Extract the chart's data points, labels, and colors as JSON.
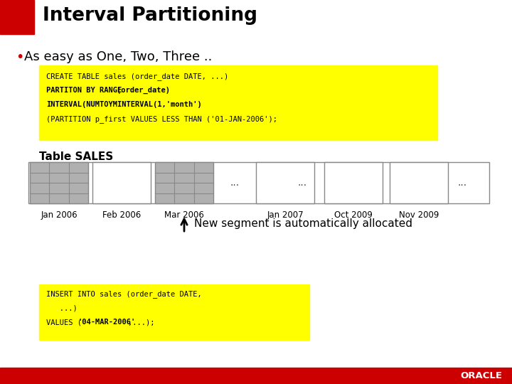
{
  "title": "Interval Partitioning",
  "bullet": "As easy as One, Two, Three ..",
  "code_line1": "CREATE TABLE sales (order_date DATE, ...)",
  "code_line2a": "PARTITON BY RANGE ",
  "code_line2b": "(order_date)",
  "code_line3": "INTERVAL(NUMTOYMINTERVAL(1,'month')",
  "code_line4": "(PARTITION p_first VALUES LESS THAN ('01-JAN-2006');",
  "table_label": "Table SALES",
  "partition_labels": [
    "Jan 2006",
    "Feb 2006",
    "Mar 2006",
    "Jan 2007",
    "Oct 2009",
    "Nov 2009"
  ],
  "arrow_label": "New segment is automatically allocated",
  "insert_line1": "INSERT INTO sales (order_date DATE,",
  "insert_line2": "   ...)",
  "insert_line3a": "VALUES (",
  "insert_line3b": "'04-MAR-2006'",
  "insert_line3c": ",...);",
  "bg_color": "#ffffff",
  "yellow_bg": "#ffff00",
  "code_color": "#000000",
  "red_accent": "#cc0000",
  "oracle_red": "#cc0000",
  "title_color": "#000000",
  "grid_color": "#888888",
  "filled_color": "#b0b0b0"
}
